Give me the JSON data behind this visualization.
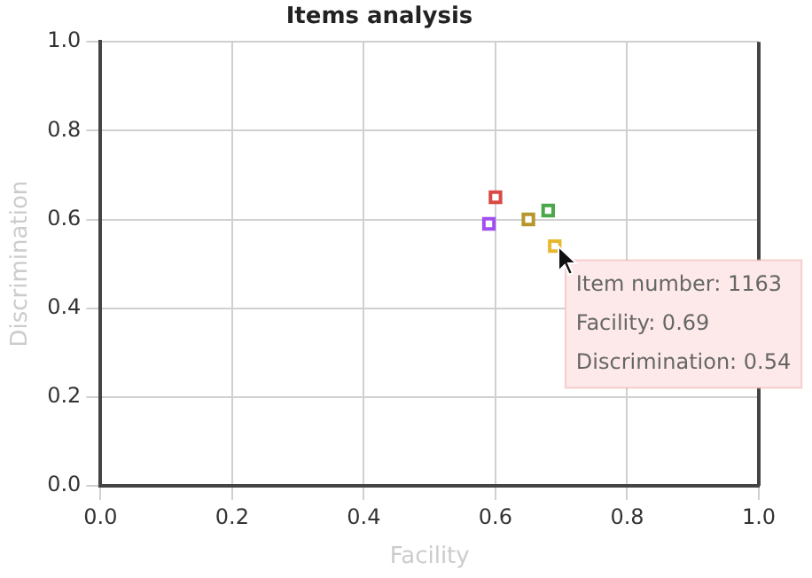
{
  "chart_data": {
    "type": "scatter",
    "title": "Items analysis",
    "xlabel": "Facility",
    "ylabel": "Discrimination",
    "x": [
      0.6,
      0.59,
      0.65,
      0.68,
      0.69
    ],
    "values": [
      0.65,
      0.59,
      0.6,
      0.62,
      0.54
    ],
    "colors": [
      "#d94a45",
      "#a050f0",
      "#b8962e",
      "#4aa84a",
      "#e8b830"
    ],
    "marker": "square",
    "grid": true,
    "legend": false,
    "xlim": [
      0,
      1
    ],
    "ylim": [
      0,
      1
    ],
    "xticks": [
      {
        "value": 0,
        "label": "0.0"
      },
      {
        "value": 0.2,
        "label": "0.2"
      },
      {
        "value": 0.4,
        "label": "0.4"
      },
      {
        "value": 0.6,
        "label": "0.6"
      },
      {
        "value": 0.8,
        "label": "0.8"
      },
      {
        "value": 1,
        "label": "1.0"
      }
    ],
    "yticks": [
      {
        "value": 0,
        "label": "0.0"
      },
      {
        "value": 0.2,
        "label": "0.2"
      },
      {
        "value": 0.4,
        "label": "0.4"
      },
      {
        "value": 0.6,
        "label": "0.6"
      },
      {
        "value": 0.8,
        "label": "0.8"
      },
      {
        "value": 1,
        "label": "1.0"
      }
    ],
    "annotations": [
      {
        "text": "Item number: 1163\nFacility: 0.69\nDiscrimination: 0.54",
        "x": 0.69,
        "y": 0.54
      }
    ]
  }
}
